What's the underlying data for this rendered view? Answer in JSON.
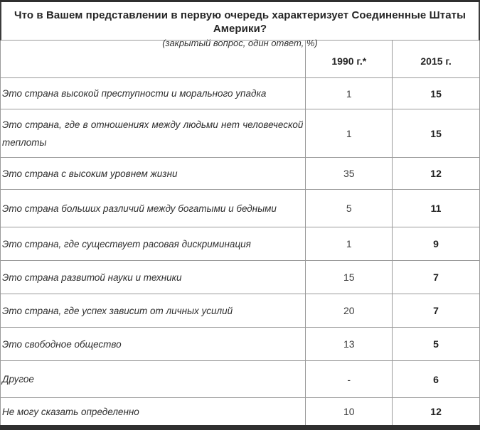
{
  "chart_data": {
    "type": "table",
    "title": "Что в Вашем представлении в первую очередь характеризует Соединенные Штаты Америки?",
    "subtitle": "(закрытый вопрос, один ответ, %)",
    "columns": [
      "1990 г.*",
      "2015 г."
    ],
    "rows": [
      {
        "label": "Это страна высокой преступности и морального упадка",
        "v1990": "1",
        "v2015": "15"
      },
      {
        "label": "Это страна, где в отношениях между людьми нет человеческой теплоты",
        "v1990": "1",
        "v2015": "15"
      },
      {
        "label": "Это страна с высоким уровнем жизни",
        "v1990": "35",
        "v2015": "12"
      },
      {
        "label": "Это страна больших различий между богатыми и бедными",
        "v1990": "5",
        "v2015": "11"
      },
      {
        "label": "Это страна, где существует расовая дискриминация",
        "v1990": "1",
        "v2015": "9"
      },
      {
        "label": "Это страна развитой науки и техники",
        "v1990": "15",
        "v2015": "7"
      },
      {
        "label": "Это страна, где успех зависит от личных усилий",
        "v1990": "20",
        "v2015": "7"
      },
      {
        "label": "Это свободное общество",
        "v1990": "13",
        "v2015": "5"
      },
      {
        "label": "Другое",
        "v1990": "-",
        "v2015": "6"
      },
      {
        "label": "Не могу сказать определенно",
        "v1990": "10",
        "v2015": "12"
      }
    ],
    "colors": {
      "border": "#9a9a9a",
      "frame_bar": "#2f2f2f",
      "text": "#2e2e2e"
    }
  }
}
